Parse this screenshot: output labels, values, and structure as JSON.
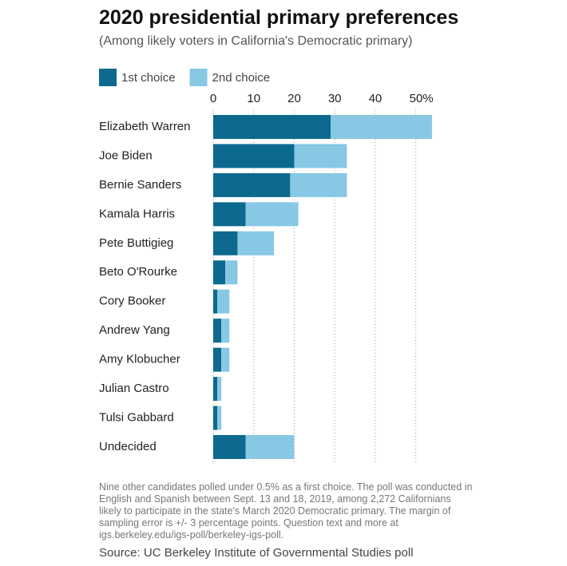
{
  "chart_data": {
    "type": "stacked-bar-horizontal",
    "title": "2020 presidential primary preferences",
    "subtitle": "(Among likely voters in California's Democratic primary)",
    "categories": [
      "Elizabeth Warren",
      "Joe Biden",
      "Bernie Sanders",
      "Kamala Harris",
      "Pete Buttigieg",
      "Beto O'Rourke",
      "Cory Booker",
      "Andrew Yang",
      "Amy Klobucher",
      "Julian Castro",
      "Tulsi Gabbard",
      "Undecided"
    ],
    "series": [
      {
        "name": "1st choice",
        "color": "#0d6a8e",
        "values": [
          29,
          20,
          19,
          8,
          6,
          3,
          1,
          2,
          2,
          1,
          1,
          8
        ]
      },
      {
        "name": "2nd choice",
        "color": "#87c8e4",
        "values": [
          25,
          13,
          14,
          13,
          9,
          3,
          3,
          2,
          2,
          1,
          1,
          12
        ]
      }
    ],
    "xlim": [
      0,
      55
    ],
    "xticks": [
      0,
      10,
      20,
      30,
      40,
      {
        "value": 50,
        "label": "50%"
      }
    ],
    "grid": true,
    "note": "Nine other candidates polled under 0.5% as a first choice. The poll was conducted in English and Spanish between Sept. 13 and 18, 2019, among 2,272 Californians likely to participate in the state's March 2020 Democratic primary. The margin of sampling error is +/- 3 percentage points. Question text and more at igs.berkeley.edu/igs-poll/berkeley-igs-poll.",
    "source": "Source: UC Berkeley Institute of Governmental Studies poll"
  }
}
